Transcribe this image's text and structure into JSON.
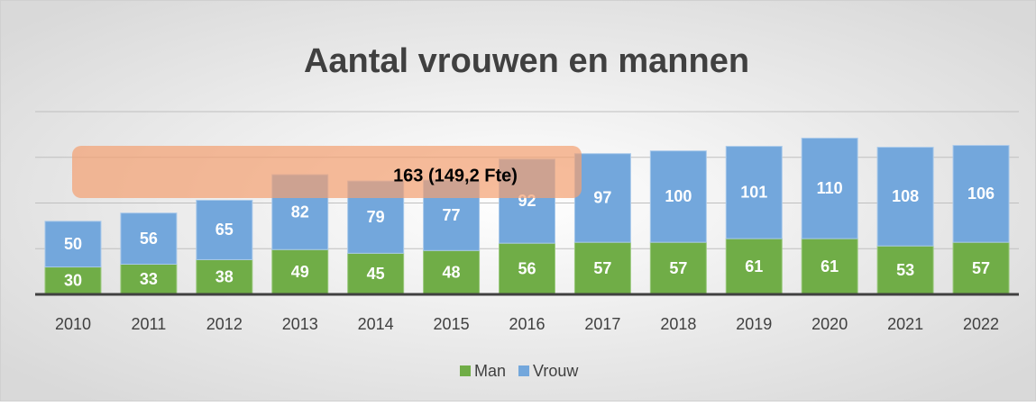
{
  "chart_data": {
    "type": "stacked_bar",
    "title": "Aantal vrouwen en mannen",
    "categories": [
      "2010",
      "2011",
      "2012",
      "2013",
      "2014",
      "2015",
      "2016",
      "2017",
      "2018",
      "2019",
      "2020",
      "2021",
      "2022"
    ],
    "series": [
      {
        "name": "Man",
        "color": "#70ad47",
        "values": [
          30,
          33,
          38,
          49,
          45,
          48,
          56,
          57,
          57,
          61,
          61,
          53,
          57
        ]
      },
      {
        "name": "Vrouw",
        "color": "#73a7dc",
        "values": [
          50,
          56,
          65,
          82,
          79,
          77,
          92,
          97,
          100,
          101,
          110,
          108,
          106
        ]
      }
    ],
    "ylim": [
      0,
      200
    ],
    "yticks": [
      0,
      50,
      100,
      150,
      200
    ],
    "grid": true,
    "annotation": "163 (149,2 Fte)",
    "legend": "bottom"
  }
}
